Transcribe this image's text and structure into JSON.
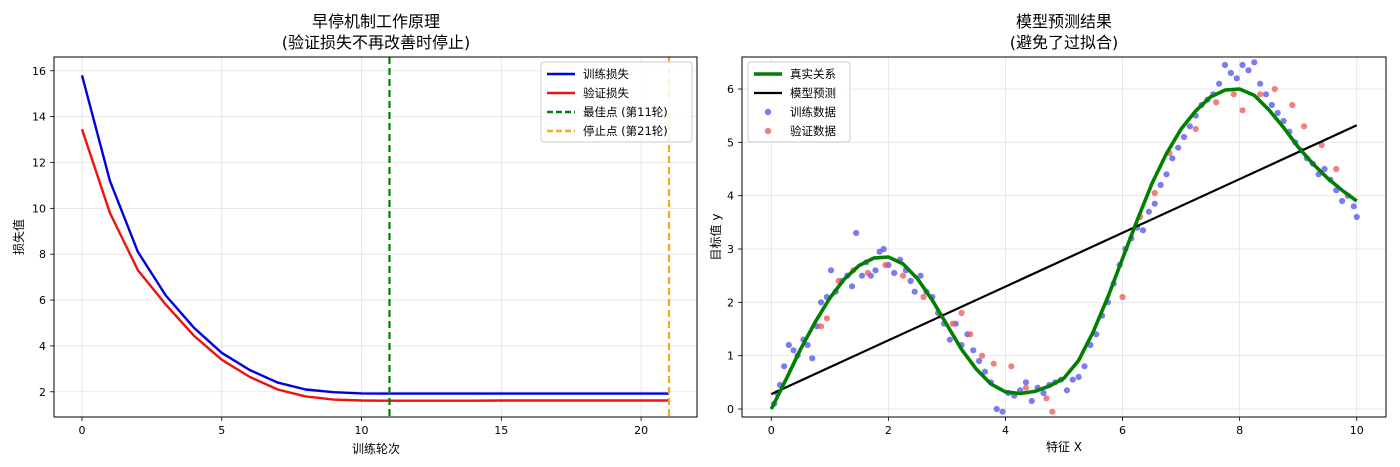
{
  "chart_data": [
    {
      "type": "line",
      "title": "早停机制工作原理",
      "subtitle": "(验证损失不再改善时停止)",
      "xlabel": "训练轮次",
      "ylabel": "损失值",
      "xlim": [
        -1,
        22
      ],
      "ylim": [
        0.9,
        16.6
      ],
      "xticks": [
        0,
        5,
        10,
        15,
        20
      ],
      "yticks": [
        2,
        4,
        6,
        8,
        10,
        12,
        14,
        16
      ],
      "grid": true,
      "legend_position": "upper-right",
      "series": [
        {
          "name": "训练损失",
          "color": "#0000dd",
          "x": [
            0,
            1,
            2,
            3,
            4,
            5,
            6,
            7,
            8,
            9,
            10,
            11,
            12,
            13,
            14,
            15,
            16,
            17,
            18,
            19,
            20,
            21
          ],
          "values": [
            15.8,
            11.2,
            8.1,
            6.2,
            4.8,
            3.7,
            2.95,
            2.4,
            2.1,
            1.98,
            1.93,
            1.92,
            1.92,
            1.92,
            1.92,
            1.92,
            1.92,
            1.92,
            1.92,
            1.92,
            1.92,
            1.92
          ]
        },
        {
          "name": "验证损失",
          "color": "#ee1111",
          "x": [
            0,
            1,
            2,
            3,
            4,
            5,
            6,
            7,
            8,
            9,
            10,
            11,
            12,
            13,
            14,
            15,
            16,
            17,
            18,
            19,
            20,
            21
          ],
          "values": [
            13.45,
            9.8,
            7.3,
            5.8,
            4.45,
            3.4,
            2.65,
            2.1,
            1.8,
            1.66,
            1.62,
            1.61,
            1.61,
            1.61,
            1.61,
            1.62,
            1.62,
            1.62,
            1.62,
            1.62,
            1.62,
            1.62
          ]
        }
      ],
      "vlines": [
        {
          "name": "最佳点 (第11轮)",
          "x": 11,
          "color": "#008000"
        },
        {
          "name": "停止点 (第21轮)",
          "x": 21,
          "color": "#f5a623"
        }
      ]
    },
    {
      "type": "scatter",
      "title": "模型预测结果",
      "subtitle": "(避免了过拟合)",
      "xlabel": "特征 X",
      "ylabel": "目标值 y",
      "xlim": [
        -0.5,
        10.5
      ],
      "ylim": [
        -0.15,
        6.6
      ],
      "xticks": [
        0,
        2,
        4,
        6,
        8,
        10
      ],
      "yticks": [
        0,
        1,
        2,
        3,
        4,
        5,
        6
      ],
      "grid": true,
      "legend_position": "upper-left",
      "true_curve": {
        "name": "真实关系",
        "color": "#008000",
        "x": [
          0,
          0.25,
          0.5,
          0.75,
          1,
          1.25,
          1.5,
          1.75,
          2,
          2.25,
          2.5,
          2.75,
          3,
          3.25,
          3.5,
          3.75,
          4,
          4.25,
          4.5,
          4.75,
          5,
          5.25,
          5.5,
          5.75,
          6,
          6.25,
          6.5,
          6.75,
          7,
          7.25,
          7.5,
          7.75,
          8,
          8.25,
          8.5,
          8.75,
          9,
          9.25,
          9.5,
          9.75,
          10
        ],
        "values": [
          0.0,
          0.55,
          1.12,
          1.63,
          2.08,
          2.44,
          2.69,
          2.83,
          2.85,
          2.72,
          2.44,
          2.04,
          1.58,
          1.12,
          0.75,
          0.47,
          0.32,
          0.29,
          0.33,
          0.43,
          0.58,
          0.91,
          1.45,
          2.1,
          2.82,
          3.54,
          4.22,
          4.79,
          5.25,
          5.59,
          5.85,
          5.98,
          6.0,
          5.88,
          5.61,
          5.28,
          4.91,
          4.6,
          4.33,
          4.1,
          3.9
        ]
      },
      "model_line": {
        "name": "模型预测",
        "color": "#000000",
        "x": [
          0,
          10
        ],
        "values": [
          0.28,
          5.32
        ]
      },
      "train_points": {
        "name": "训练数据",
        "color": "#5050ee",
        "x": [
          0.05,
          0.1,
          0.15,
          0.22,
          0.3,
          0.38,
          0.45,
          0.55,
          0.62,
          0.7,
          0.78,
          0.85,
          0.95,
          1.02,
          1.1,
          1.2,
          1.3,
          1.38,
          1.45,
          1.55,
          1.62,
          1.7,
          1.78,
          1.85,
          1.92,
          2.0,
          2.1,
          2.2,
          2.3,
          2.38,
          2.45,
          2.55,
          2.65,
          2.75,
          2.85,
          2.95,
          3.05,
          3.15,
          3.25,
          3.35,
          3.45,
          3.55,
          3.65,
          3.75,
          3.85,
          3.95,
          4.05,
          4.15,
          4.25,
          4.35,
          4.45,
          4.55,
          4.65,
          4.75,
          4.85,
          4.95,
          5.05,
          5.15,
          5.25,
          5.35,
          5.45,
          5.55,
          5.65,
          5.75,
          5.85,
          5.95,
          6.05,
          6.15,
          6.25,
          6.35,
          6.45,
          6.55,
          6.65,
          6.75,
          6.85,
          6.95,
          7.05,
          7.15,
          7.25,
          7.35,
          7.45,
          7.55,
          7.65,
          7.75,
          7.85,
          7.95,
          8.05,
          8.15,
          8.25,
          8.35,
          8.45,
          8.55,
          8.65,
          8.75,
          8.85,
          8.95,
          9.05,
          9.15,
          9.25,
          9.35,
          9.45,
          9.55,
          9.65,
          9.75,
          9.85,
          9.95,
          10.0
        ],
        "values": [
          0.1,
          0.3,
          0.45,
          0.8,
          1.2,
          1.1,
          1.0,
          1.3,
          1.2,
          0.95,
          1.55,
          2.0,
          2.1,
          2.6,
          2.2,
          2.4,
          2.5,
          2.3,
          3.3,
          2.5,
          2.75,
          2.5,
          2.6,
          2.95,
          3.0,
          2.7,
          2.55,
          2.8,
          2.6,
          2.4,
          2.2,
          2.5,
          2.2,
          2.1,
          1.8,
          1.6,
          1.3,
          1.6,
          1.2,
          1.4,
          1.1,
          0.9,
          0.7,
          0.5,
          0.0,
          -0.05,
          0.3,
          0.25,
          0.35,
          0.5,
          0.15,
          0.4,
          0.3,
          0.45,
          0.5,
          0.55,
          0.35,
          0.55,
          0.6,
          0.8,
          1.2,
          1.4,
          1.75,
          2.0,
          2.35,
          2.7,
          3.0,
          3.2,
          3.4,
          3.35,
          3.7,
          3.85,
          4.2,
          4.4,
          4.7,
          4.9,
          5.1,
          5.3,
          5.5,
          5.7,
          5.8,
          5.9,
          6.1,
          6.45,
          6.3,
          6.2,
          6.45,
          6.35,
          6.5,
          6.1,
          5.9,
          5.7,
          5.55,
          5.4,
          5.2,
          5.0,
          4.85,
          4.7,
          4.6,
          4.4,
          4.5,
          4.3,
          4.1,
          3.9,
          4.0,
          3.8,
          3.6
        ]
      },
      "val_points": {
        "name": "验证数据",
        "color": "#ee5555",
        "x": [
          0.85,
          0.95,
          1.15,
          1.4,
          1.65,
          1.95,
          2.25,
          2.6,
          2.9,
          3.1,
          3.25,
          3.4,
          3.6,
          3.8,
          4.1,
          4.35,
          4.7,
          4.8,
          6.0,
          6.3,
          6.55,
          6.8,
          7.25,
          7.6,
          7.9,
          8.05,
          8.35,
          8.6,
          8.9,
          9.1,
          9.4,
          9.65
        ],
        "values": [
          1.55,
          1.7,
          2.4,
          2.6,
          2.55,
          2.7,
          2.5,
          2.1,
          1.75,
          1.6,
          1.8,
          1.4,
          1.0,
          0.85,
          0.8,
          0.4,
          0.2,
          -0.05,
          2.1,
          3.6,
          4.05,
          4.8,
          5.25,
          5.75,
          5.9,
          5.6,
          5.9,
          6.0,
          5.7,
          5.3,
          4.95,
          4.5
        ]
      }
    }
  ]
}
